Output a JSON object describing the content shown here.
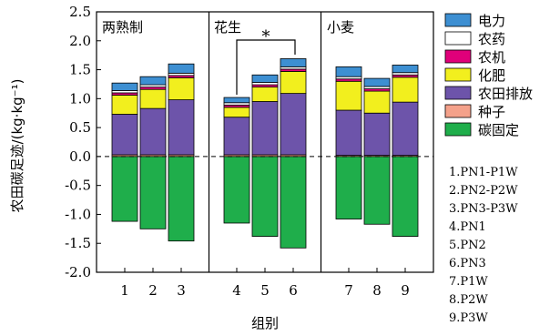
{
  "chart_data": {
    "type": "bar",
    "stacked": true,
    "xlabel": "组别",
    "ylabel": "农田碳足迹/(kg·kg⁻¹)",
    "ylim": [
      -2.0,
      2.5
    ],
    "yticks": [
      "-2.0",
      "-1.5",
      "-1.0",
      "-0.5",
      "0.0",
      "0.5",
      "1.0",
      "1.5",
      "2.0",
      "2.5"
    ],
    "categories": [
      "1",
      "2",
      "3",
      "4",
      "5",
      "6",
      "7",
      "8",
      "9"
    ],
    "panels": [
      {
        "label": "两熟制",
        "categories": [
          "1",
          "2",
          "3"
        ]
      },
      {
        "label": "花生",
        "categories": [
          "4",
          "5",
          "6"
        ]
      },
      {
        "label": "小麦",
        "categories": [
          "7",
          "8",
          "9"
        ]
      }
    ],
    "series": [
      {
        "name": "种子",
        "color": "#f4a18a",
        "values": [
          0.03,
          0.03,
          0.03,
          0.03,
          0.03,
          0.03,
          0.02,
          0.02,
          0.02
        ]
      },
      {
        "name": "农田排放",
        "color": "#6d54aa",
        "values": [
          0.7,
          0.8,
          0.95,
          0.65,
          0.92,
          1.06,
          0.78,
          0.73,
          0.92
        ]
      },
      {
        "name": "化肥",
        "color": "#f2ef1e",
        "values": [
          0.33,
          0.33,
          0.38,
          0.17,
          0.25,
          0.38,
          0.5,
          0.38,
          0.43
        ]
      },
      {
        "name": "农机",
        "color": "#e0007a",
        "values": [
          0.04,
          0.04,
          0.04,
          0.04,
          0.04,
          0.04,
          0.04,
          0.04,
          0.04
        ]
      },
      {
        "name": "农药",
        "color": "#ffffff",
        "values": [
          0.04,
          0.04,
          0.04,
          0.04,
          0.04,
          0.04,
          0.04,
          0.04,
          0.04
        ]
      },
      {
        "name": "电力",
        "color": "#3d8fd2",
        "values": [
          0.13,
          0.14,
          0.16,
          0.09,
          0.13,
          0.14,
          0.17,
          0.14,
          0.13
        ]
      },
      {
        "name": "碳固定",
        "color": "#1fae4b",
        "values": [
          -1.12,
          -1.25,
          -1.46,
          -1.15,
          -1.38,
          -1.58,
          -1.08,
          -1.17,
          -1.38
        ]
      }
    ],
    "legend_order": [
      "电力",
      "农药",
      "农机",
      "化肥",
      "农田排放",
      "种子",
      "碳固定"
    ],
    "legend_placement": "right",
    "group_legend": [
      "1.PN1-P1W",
      "2.PN2-P2W",
      "3.PN3-P3W",
      "4.PN1",
      "5.PN2",
      "6.PN3",
      "7.P1W",
      "8.P2W",
      "9.P3W"
    ],
    "annotation": {
      "text": "*",
      "between": [
        "4",
        "6"
      ]
    },
    "zero_line": "dashed",
    "grid": false
  }
}
